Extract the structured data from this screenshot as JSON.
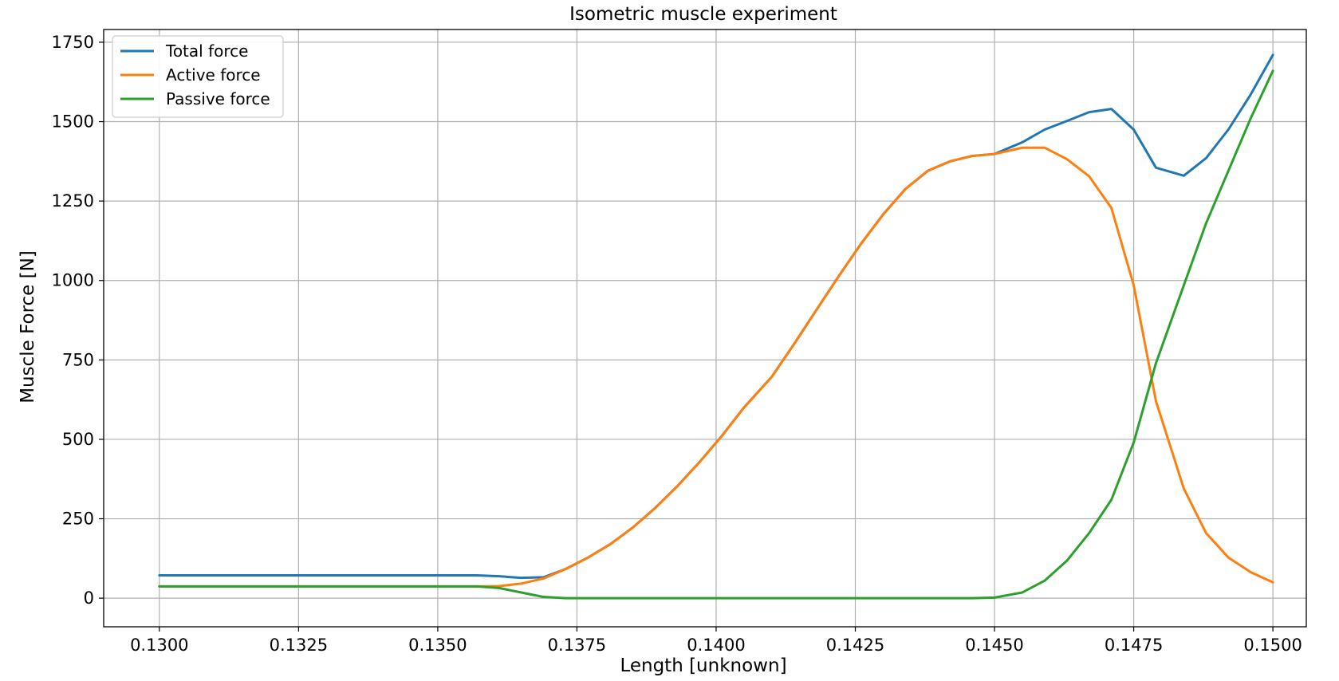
{
  "chart_data": {
    "type": "line",
    "title": "Isometric muscle experiment",
    "xlabel": "Length [unknown]",
    "ylabel": "Muscle Force [N]",
    "xlim": [
      0.129,
      0.1506
    ],
    "ylim": [
      -90,
      1790
    ],
    "xticks": [
      0.13,
      0.1325,
      0.135,
      0.1375,
      0.14,
      0.1425,
      0.145,
      0.1475,
      0.15
    ],
    "xtick_labels": [
      "0.1300",
      "0.1325",
      "0.1350",
      "0.1375",
      "0.1400",
      "0.1425",
      "0.1450",
      "0.1475",
      "0.1500"
    ],
    "yticks": [
      0,
      250,
      500,
      750,
      1000,
      1250,
      1500,
      1750
    ],
    "ytick_labels": [
      "0",
      "250",
      "500",
      "750",
      "1000",
      "1250",
      "1500",
      "1750"
    ],
    "grid": true,
    "legend": "top-left",
    "series": [
      {
        "name": "Total force",
        "color": "#1f77b4",
        "x": [
          0.13,
          0.1357,
          0.1361,
          0.1365,
          0.1369,
          0.1373,
          0.1377,
          0.1381,
          0.1385,
          0.1389,
          0.1393,
          0.1397,
          0.1401,
          0.1405,
          0.141,
          0.1414,
          0.1418,
          0.1422,
          0.1426,
          0.143,
          0.1434,
          0.1438,
          0.1442,
          0.1446,
          0.145,
          0.1455,
          0.1459,
          0.1463,
          0.1467,
          0.1471,
          0.1475,
          0.1479,
          0.1484,
          0.1488,
          0.1492,
          0.1496,
          0.15
        ],
        "y": [
          72,
          72,
          69,
          64,
          66,
          92,
          128,
          170,
          222,
          283,
          352,
          428,
          510,
          600,
          697,
          800,
          907,
          1013,
          1115,
          1208,
          1288,
          1345,
          1375,
          1392,
          1398,
          1435,
          1475,
          1502,
          1530,
          1540,
          1475,
          1355,
          1330,
          1385,
          1475,
          1585,
          1710
        ]
      },
      {
        "name": "Active force",
        "color": "#ff7f0e",
        "x": [
          0.13,
          0.1357,
          0.1361,
          0.1365,
          0.1369,
          0.1373,
          0.1377,
          0.1381,
          0.1385,
          0.1389,
          0.1393,
          0.1397,
          0.1401,
          0.1405,
          0.141,
          0.1414,
          0.1418,
          0.1422,
          0.1426,
          0.143,
          0.1434,
          0.1438,
          0.1442,
          0.1446,
          0.145,
          0.1455,
          0.1459,
          0.1463,
          0.1467,
          0.1471,
          0.1475,
          0.1479,
          0.1484,
          0.1488,
          0.1492,
          0.1496,
          0.15
        ],
        "y": [
          37,
          37,
          38,
          46,
          62,
          92,
          128,
          170,
          222,
          283,
          352,
          428,
          510,
          600,
          697,
          800,
          907,
          1013,
          1115,
          1208,
          1288,
          1345,
          1375,
          1392,
          1398,
          1418,
          1418,
          1382,
          1328,
          1228,
          985,
          620,
          345,
          205,
          128,
          82,
          50
        ]
      },
      {
        "name": "Passive force",
        "color": "#2ca02c",
        "x": [
          0.13,
          0.1357,
          0.1361,
          0.1365,
          0.1369,
          0.1373,
          0.1377,
          0.1381,
          0.1385,
          0.1389,
          0.1393,
          0.1397,
          0.1401,
          0.1405,
          0.141,
          0.1414,
          0.1418,
          0.1422,
          0.1426,
          0.143,
          0.1434,
          0.1438,
          0.1442,
          0.1446,
          0.145,
          0.1455,
          0.1459,
          0.1463,
          0.1467,
          0.1471,
          0.1475,
          0.1479,
          0.1484,
          0.1488,
          0.1492,
          0.1496,
          0.15
        ],
        "y": [
          37,
          37,
          32,
          18,
          4,
          0,
          0,
          0,
          0,
          0,
          0,
          0,
          0,
          0,
          0,
          0,
          0,
          0,
          0,
          0,
          0,
          0,
          0,
          0,
          2,
          18,
          55,
          118,
          205,
          310,
          490,
          740,
          985,
          1180,
          1345,
          1510,
          1660
        ]
      }
    ]
  }
}
